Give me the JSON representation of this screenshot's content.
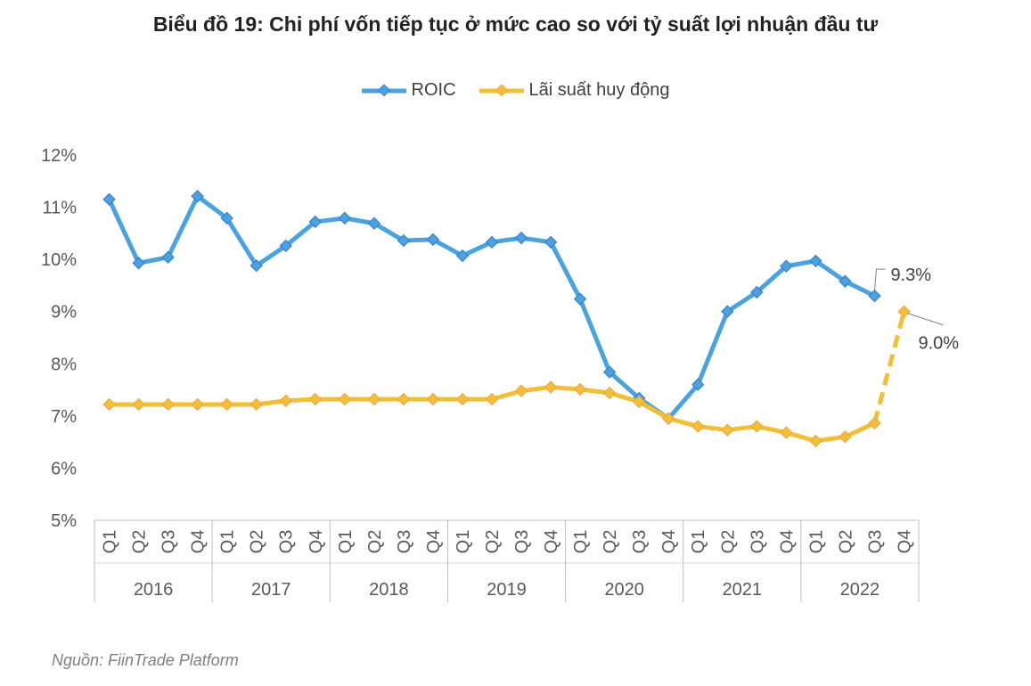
{
  "title": "Biểu đồ 19: Chi phí vốn tiếp tục ở mức cao so với tỷ suất lợi nhuận đầu tư",
  "source": "Nguồn: FiinTrade Platform",
  "chart_data": {
    "type": "line",
    "title": "Biểu đồ 19: Chi phí vốn tiếp tục ở mức cao so với tỷ suất lợi nhuận đầu tư",
    "xlabel": "",
    "ylabel": "",
    "ylim": [
      5,
      12
    ],
    "yticks": [
      "5%",
      "6%",
      "7%",
      "8%",
      "9%",
      "10%",
      "11%",
      "12%"
    ],
    "grid": false,
    "legend_position": "top",
    "years": [
      "2016",
      "2017",
      "2018",
      "2019",
      "2020",
      "2021",
      "2022"
    ],
    "quarters": [
      "Q1",
      "Q2",
      "Q3",
      "Q4"
    ],
    "series": [
      {
        "name": "ROIC",
        "color": "#4aa3df",
        "marker_color": "#3b7fd4",
        "values": [
          11.15,
          9.93,
          10.04,
          11.21,
          10.79,
          9.88,
          10.26,
          10.72,
          10.79,
          10.69,
          10.36,
          10.38,
          10.07,
          10.33,
          10.41,
          10.33,
          9.24,
          7.84,
          7.34,
          6.95,
          7.6,
          9.0,
          9.37,
          9.87,
          9.97,
          9.58,
          9.3,
          null
        ],
        "annotation": {
          "index": 26,
          "text": "9.3%"
        }
      },
      {
        "name": "Lãi suất huy động",
        "color": "#f2c037",
        "marker_color": "#f0a742",
        "values": [
          7.22,
          7.22,
          7.22,
          7.22,
          7.22,
          7.22,
          7.29,
          7.32,
          7.32,
          7.32,
          7.32,
          7.32,
          7.32,
          7.32,
          7.48,
          7.55,
          7.51,
          7.44,
          7.27,
          6.95,
          6.8,
          6.73,
          6.8,
          6.68,
          6.52,
          6.6,
          6.86,
          9.0
        ],
        "dashed_last_segment": true,
        "annotation": {
          "index": 27,
          "text": "9.0%"
        }
      }
    ]
  }
}
